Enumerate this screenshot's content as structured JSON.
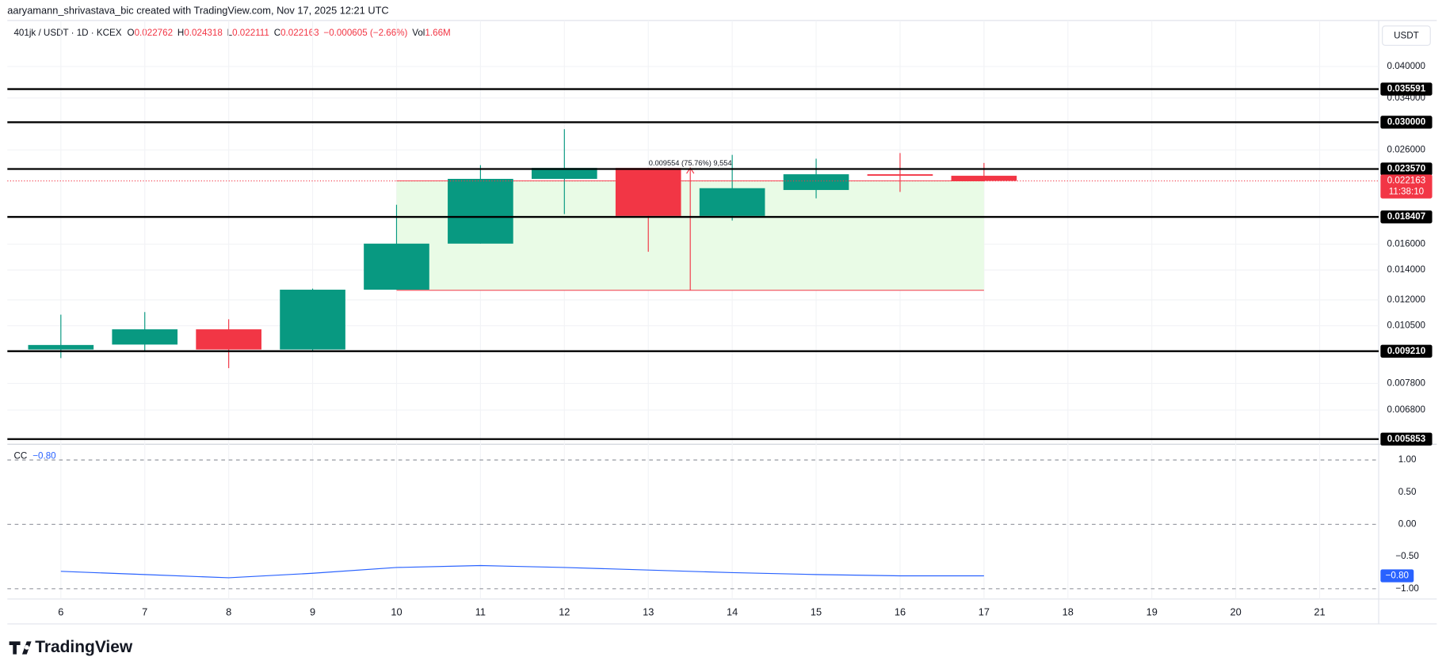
{
  "header": {
    "attribution": "aaryamann_shrivastava_bic created with TradingView.com, Nov 17, 2025 12:21 UTC",
    "symbol": "401jk / USDT · 1D · KCEX",
    "ohlc": [
      {
        "key": "O",
        "value": "0.022762"
      },
      {
        "key": "H",
        "value": "0.024318"
      },
      {
        "key": "L",
        "value": "0.022111"
      },
      {
        "key": "C",
        "value": "0.022163"
      }
    ],
    "change": "−0.000605 (−2.66%)",
    "volume_key": "Vol",
    "volume": "1.66M",
    "currency": "USDT",
    "brand": "TradingView"
  },
  "chart_data": [
    {
      "type": "candlestick",
      "categories": [
        "6",
        "7",
        "8",
        "9",
        "10",
        "11",
        "12",
        "13",
        "14",
        "15",
        "16",
        "17",
        "18",
        "19",
        "20",
        "21"
      ],
      "open": [
        0.00929,
        0.00953,
        0.01031,
        0.00929,
        0.01265,
        0.01604,
        0.0224,
        0.0237,
        0.0185,
        0.02115,
        0.02294,
        0.022762,
        null,
        null,
        null,
        null
      ],
      "high": [
        0.01112,
        0.01127,
        0.01086,
        0.01272,
        0.0196,
        0.02404,
        0.02894,
        0.0237,
        0.02535,
        0.02486,
        0.02559,
        0.024318,
        null,
        null,
        null,
        null
      ],
      "low": [
        0.00889,
        0.0092,
        0.00844,
        0.00921,
        0.01265,
        0.01604,
        0.01868,
        0.01538,
        0.01807,
        0.02026,
        0.02094,
        0.022111,
        null,
        null,
        null,
        null
      ],
      "close": [
        0.00951,
        0.01031,
        0.00929,
        0.01265,
        0.01604,
        0.0224,
        0.0237,
        0.0185,
        0.02135,
        0.02294,
        0.02276,
        0.022163,
        null,
        null,
        null,
        null
      ],
      "up_color": "#089981",
      "down_color": "#f23645",
      "log_scale": true,
      "grid": true,
      "ylim": [
        0.0057,
        0.0507
      ],
      "yticks": [
        {
          "value": 0.04,
          "label": "0.040000"
        },
        {
          "value": 0.034,
          "label": "0.034000"
        },
        {
          "value": 0.026,
          "label": "0.026000"
        },
        {
          "value": 0.016,
          "label": "0.016000"
        },
        {
          "value": 0.014,
          "label": "0.014000"
        },
        {
          "value": 0.012,
          "label": "0.012000"
        },
        {
          "value": 0.0105,
          "label": "0.010500"
        },
        {
          "value": 0.0078,
          "label": "0.007800"
        },
        {
          "value": 0.0068,
          "label": "0.006800"
        }
      ],
      "levels": [
        0.035591,
        {
          "value": 0.03,
          "label": "0.030000"
        },
        {
          "value": 0.02357,
          "label": "0.023570"
        },
        0.018407,
        {
          "value": 0.00921,
          "label": "0.009210"
        },
        0.005853
      ],
      "last_price": {
        "value": 0.022163,
        "countdown": "11:38:10"
      },
      "measure": {
        "from": 0.012609,
        "to": 0.022163,
        "label": "0.009554 (75.76%) 9,554"
      }
    },
    {
      "type": "line",
      "series": [
        {
          "name": "CC",
          "color": "#2962ff",
          "values": [
            -0.73,
            -0.78,
            -0.83,
            -0.76,
            -0.67,
            -0.64,
            -0.67,
            -0.71,
            -0.75,
            -0.78,
            -0.8,
            -0.8,
            null,
            null,
            null,
            null
          ],
          "last_value": -0.8,
          "value_label": "−0.80"
        }
      ],
      "ylim": [
        -1.16,
        1.23
      ],
      "yticks": [
        {
          "value": 1,
          "label": "1.00"
        },
        {
          "value": 0.5,
          "label": "0.50"
        },
        {
          "value": 0,
          "label": "0.00"
        },
        {
          "value": -0.5,
          "label": "−0.50"
        },
        {
          "value": -1,
          "label": "−1.00"
        }
      ],
      "dashed_ticks": [
        1,
        0,
        -1
      ]
    }
  ]
}
